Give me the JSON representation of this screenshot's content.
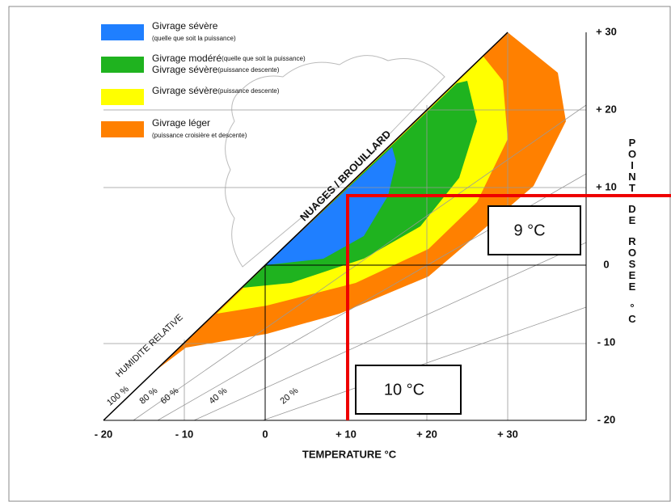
{
  "legend": [
    {
      "lines": [
        {
          "text": "Givrage sévère",
          "note": ""
        },
        {
          "text": "(quelle que soit la puissance)",
          "note": ""
        }
      ]
    },
    {
      "lines": [
        {
          "text": "Givrage modéré",
          "note": "(quelle que soit la puissance)"
        },
        {
          "text": "Givrage sévère",
          "note": "(puissance descente)"
        }
      ]
    },
    {
      "lines": [
        {
          "text": "Givrage sévère",
          "note": "(puissance descente)"
        }
      ]
    },
    {
      "lines": [
        {
          "text": "Givrage léger",
          "note": ""
        },
        {
          "text": "(puissance croisière et descente)",
          "note": ""
        }
      ]
    }
  ],
  "x_ticks": [
    "- 20",
    "- 10",
    "0",
    "+ 10",
    "+ 20",
    "+ 30"
  ],
  "y_ticks": [
    "+ 30",
    "+ 20",
    "+ 10",
    "0",
    "- 10",
    "- 20"
  ],
  "x_label": "TEMPERATURE °C",
  "y_label": [
    "POINT",
    "DE",
    "ROSEE",
    "°C"
  ],
  "humidity_labels": [
    "100 %",
    "80 %",
    "60 %",
    "40 %",
    "20 %"
  ],
  "humidity_title": "HUMIDITE RELATIVE",
  "cloud_label": "NUAGES / BROUILLARD",
  "callouts": [
    "9 °C",
    "10 °C"
  ]
}
